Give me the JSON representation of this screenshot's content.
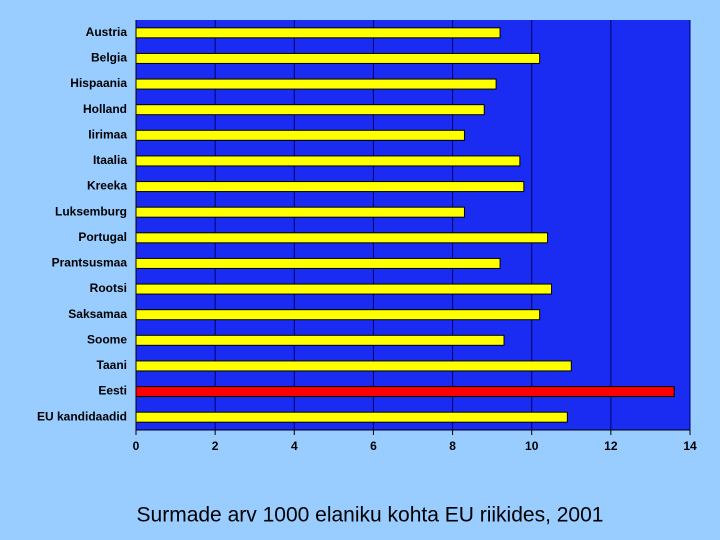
{
  "chart_data": {
    "type": "bar",
    "orientation": "horizontal",
    "title": "Surmade arv 1000 elaniku kohta EU riikides, 2001",
    "categories": [
      "Austria",
      "Belgia",
      "Hispaania",
      "Holland",
      "Iirimaa",
      "Itaalia",
      "Kreeka",
      "Luksemburg",
      "Portugal",
      "Prantsusmaa",
      "Rootsi",
      "Saksamaa",
      "Soome",
      "Taani",
      "Eesti",
      "EU kandidaadid"
    ],
    "values": [
      9.2,
      10.2,
      9.1,
      8.8,
      8.3,
      9.7,
      9.8,
      8.3,
      10.4,
      9.2,
      10.5,
      10.2,
      9.3,
      11.0,
      13.6,
      10.9
    ],
    "colors": [
      "#ffff00",
      "#ffff00",
      "#ffff00",
      "#ffff00",
      "#ffff00",
      "#ffff00",
      "#ffff00",
      "#ffff00",
      "#ffff00",
      "#ffff00",
      "#ffff00",
      "#ffff00",
      "#ffff00",
      "#ffff00",
      "#ff0000",
      "#ffff00"
    ],
    "xlim": [
      0,
      14
    ],
    "xticks": [
      0,
      2,
      4,
      6,
      8,
      10,
      12,
      14
    ],
    "grid": true
  }
}
